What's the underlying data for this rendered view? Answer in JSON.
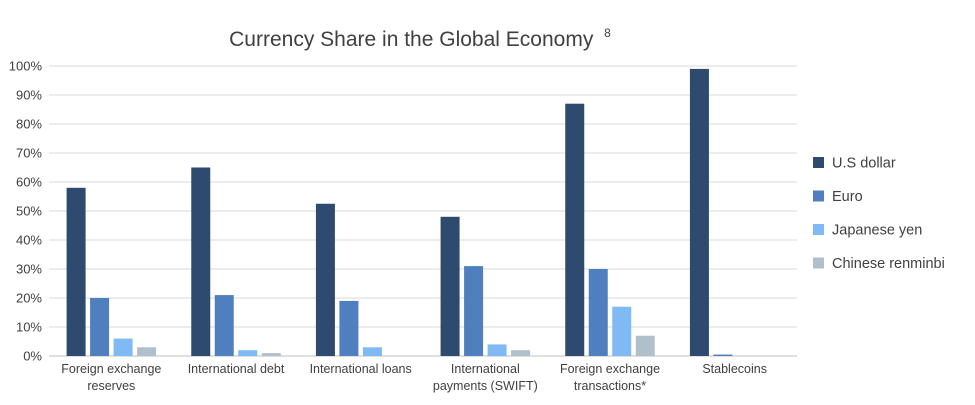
{
  "chart_data": {
    "type": "bar",
    "title": "Currency Share in the Global Economy",
    "title_superscript": "8",
    "categories": [
      [
        "Foreign exchange",
        "reserves"
      ],
      [
        "International debt"
      ],
      [
        "International loans"
      ],
      [
        "International",
        "payments (SWIFT)"
      ],
      [
        "Foreign exchange",
        "transactions*"
      ],
      [
        "Stablecoins"
      ]
    ],
    "series": [
      {
        "name": "U.S dollar",
        "color": "#2e4a6e",
        "values": [
          58,
          65,
          52.5,
          48,
          87,
          99
        ]
      },
      {
        "name": "Euro",
        "color": "#4f7fbe",
        "values": [
          20,
          21,
          19,
          31,
          30,
          0.5
        ]
      },
      {
        "name": "Japanese yen",
        "color": "#7fbaf5",
        "values": [
          6,
          2,
          3,
          4,
          17,
          0
        ]
      },
      {
        "name": "Chinese renminbi",
        "color": "#b0bfcc",
        "values": [
          3,
          1,
          0,
          2,
          7,
          0
        ]
      }
    ],
    "yticks": [
      "0%",
      "10%",
      "20%",
      "30%",
      "40%",
      "50%",
      "60%",
      "70%",
      "80%",
      "90%",
      "100%"
    ],
    "ylim": [
      0,
      100
    ],
    "grid": true,
    "legend": "right"
  }
}
